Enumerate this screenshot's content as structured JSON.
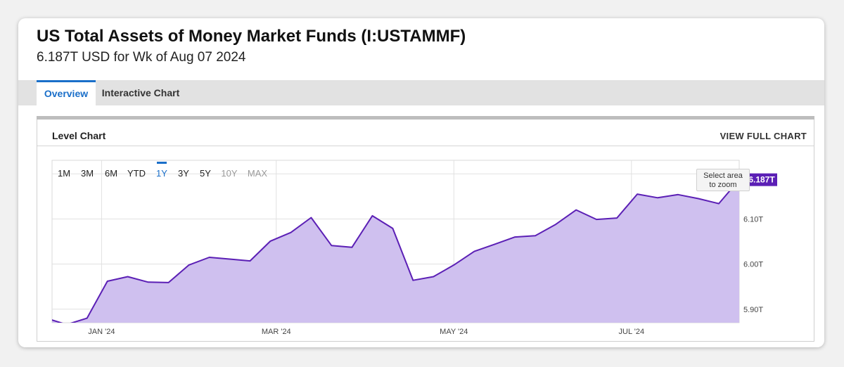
{
  "header": {
    "title": "US Total Assets of Money Market Funds (I:USTAMMF)",
    "subtitle": "6.187T USD for Wk of Aug 07 2024"
  },
  "tabs": [
    {
      "label": "Overview",
      "active": true
    },
    {
      "label": "Interactive Chart",
      "active": false
    }
  ],
  "panel": {
    "label": "Level Chart",
    "view_full": "VIEW FULL CHART",
    "zoom_hint_line1": "Select area",
    "zoom_hint_line2": "to zoom"
  },
  "ranges": [
    {
      "label": "1M",
      "state": "enabled"
    },
    {
      "label": "3M",
      "state": "enabled"
    },
    {
      "label": "6M",
      "state": "enabled"
    },
    {
      "label": "YTD",
      "state": "enabled"
    },
    {
      "label": "1Y",
      "state": "active"
    },
    {
      "label": "3Y",
      "state": "enabled"
    },
    {
      "label": "5Y",
      "state": "enabled"
    },
    {
      "label": "10Y",
      "state": "disabled"
    },
    {
      "label": "MAX",
      "state": "disabled"
    }
  ],
  "colors": {
    "accent": "#1a6fc9",
    "line": "#5b1fb5",
    "fill": "#cfc0ef",
    "badge": "#5b1fb5",
    "grid": "#e1e1e1"
  },
  "chart_data": {
    "type": "area",
    "unit": "T USD",
    "last_value_label": "6.187T",
    "ylim": [
      5.87,
      6.23
    ],
    "y_ticks": [
      5.9,
      6.0,
      6.1
    ],
    "y_tick_labels": [
      "5.90T",
      "6.00T",
      "6.10T"
    ],
    "x_ticks": [
      "2024-01-01",
      "2024-03-01",
      "2024-05-01",
      "2024-07-01"
    ],
    "x_tick_labels": [
      "JAN '24",
      "MAR '24",
      "MAY '24",
      "JUL '24"
    ],
    "xlim": [
      "2023-12-15",
      "2024-08-07"
    ],
    "grid": true,
    "x": [
      "2023-12-13",
      "2023-12-20",
      "2023-12-27",
      "2024-01-03",
      "2024-01-10",
      "2024-01-17",
      "2024-01-24",
      "2024-01-31",
      "2024-02-07",
      "2024-02-14",
      "2024-02-21",
      "2024-02-28",
      "2024-03-06",
      "2024-03-13",
      "2024-03-20",
      "2024-03-27",
      "2024-04-03",
      "2024-04-10",
      "2024-04-17",
      "2024-04-24",
      "2024-05-01",
      "2024-05-08",
      "2024-05-15",
      "2024-05-22",
      "2024-05-29",
      "2024-06-05",
      "2024-06-12",
      "2024-06-19",
      "2024-06-26",
      "2024-07-03",
      "2024-07-10",
      "2024-07-17",
      "2024-07-24",
      "2024-07-31",
      "2024-08-07"
    ],
    "series": [
      {
        "values": [
          5.88,
          5.866,
          5.88,
          5.962,
          5.972,
          5.96,
          5.959,
          5.998,
          6.015,
          6.011,
          6.007,
          6.051,
          6.07,
          6.103,
          6.041,
          6.037,
          6.107,
          6.079,
          5.964,
          5.972,
          5.998,
          6.028,
          6.044,
          6.06,
          6.063,
          6.088,
          6.12,
          6.099,
          6.102,
          6.155,
          6.147,
          6.154,
          6.145,
          6.134,
          6.187
        ]
      }
    ]
  }
}
